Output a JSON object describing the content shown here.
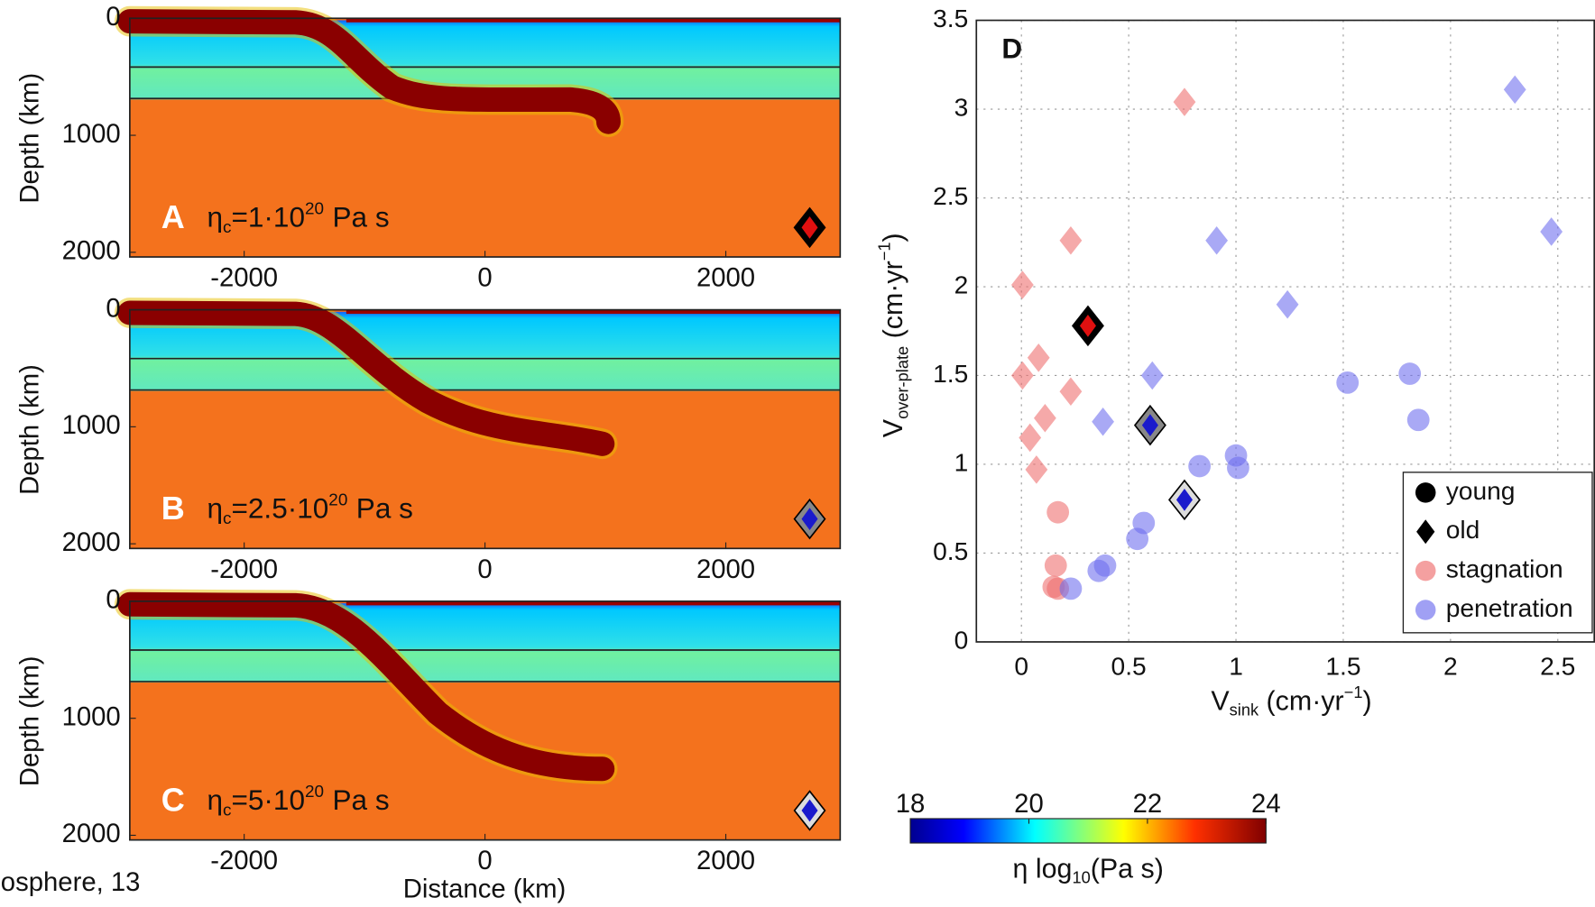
{
  "chart_data": [
    {
      "type": "heatmap",
      "letter": "A",
      "annotation": {
        "symbol": "η",
        "subscript": "c",
        "text": "=1·10",
        "superscript": "20",
        "unit": "Pa s"
      },
      "ylabel": "Depth (km)",
      "xlim": [
        -2950,
        2950
      ],
      "ylim": [
        2040,
        0
      ],
      "xticks": [
        -2000,
        0,
        2000
      ],
      "yticks": [
        0,
        1000,
        2000
      ],
      "marker_color": "#e01010",
      "marker_halo": "#000000"
    },
    {
      "type": "heatmap",
      "letter": "B",
      "annotation": {
        "symbol": "η",
        "subscript": "c",
        "text": "=2.5·10",
        "superscript": "20",
        "unit": "Pa s"
      },
      "ylabel": "Depth (km)",
      "xlim": [
        -2950,
        2950
      ],
      "ylim": [
        2040,
        0
      ],
      "xticks": [
        -2000,
        0,
        2000
      ],
      "yticks": [
        0,
        1000,
        2000
      ],
      "marker_color": "#1a1acc",
      "marker_halo": "#888888"
    },
    {
      "type": "heatmap",
      "letter": "C",
      "annotation": {
        "symbol": "η",
        "subscript": "c",
        "text": "=5·10",
        "superscript": "20",
        "unit": "Pa s"
      },
      "ylabel": "Depth (km)",
      "xlabel": "Distance (km)",
      "xlim": [
        -2950,
        2950
      ],
      "ylim": [
        2040,
        0
      ],
      "xticks": [
        -2000,
        0,
        2000
      ],
      "yticks": [
        0,
        1000,
        2000
      ],
      "marker_color": "#1a1acc",
      "marker_halo": "#dddddd"
    },
    {
      "type": "scatter",
      "letter": "D",
      "xlabel": {
        "symbol": "V",
        "subscript": "sink",
        "text": " (cm·yr",
        "superscript": "−1",
        "end": ")"
      },
      "ylabel": {
        "symbol": "V",
        "subscript": "over-plate",
        "text": " (cm·yr",
        "superscript": "−1",
        "end": ")"
      },
      "xlim": [
        -0.21,
        2.67
      ],
      "ylim": [
        0,
        3.5
      ],
      "xticks": [
        0,
        0.5,
        1,
        1.5,
        2,
        2.5
      ],
      "yticks": [
        0,
        0.5,
        1,
        1.5,
        2,
        2.5,
        3,
        3.5
      ],
      "grid": true,
      "series": [
        {
          "marker": "diamond",
          "color": "#ee6f6f",
          "alpha": 0.6,
          "x": [
            0.005,
            0.23,
            0.76,
            0.08,
            0.005,
            0.23,
            0.11,
            0.04,
            0.07
          ],
          "values": [
            2.01,
            2.26,
            3.04,
            1.6,
            1.5,
            1.41,
            1.26,
            1.15,
            0.97
          ]
        },
        {
          "marker": "diamond",
          "color": "#6f6fee",
          "alpha": 0.6,
          "x": [
            2.3,
            2.47,
            0.91,
            1.24,
            0.61,
            0.38
          ],
          "values": [
            3.11,
            2.31,
            2.26,
            1.9,
            1.5,
            1.24
          ]
        },
        {
          "marker": "circle",
          "color": "#ee6f6f",
          "alpha": 0.6,
          "x": [
            0.17,
            0.16,
            0.15,
            0.17
          ],
          "values": [
            0.73,
            0.43,
            0.31,
            0.3
          ]
        },
        {
          "marker": "circle",
          "color": "#6f6fee",
          "alpha": 0.6,
          "x": [
            0.23,
            0.36,
            0.39,
            0.54,
            0.57,
            0.83,
            1.0,
            1.01,
            1.52,
            1.81,
            1.85
          ],
          "values": [
            0.3,
            0.4,
            0.43,
            0.58,
            0.67,
            0.99,
            1.05,
            0.98,
            1.46,
            1.51,
            1.25
          ]
        },
        {
          "marker": "diamond",
          "color": "#e01010",
          "halo": "#000000",
          "x": [
            0.31
          ],
          "values": [
            1.78
          ]
        },
        {
          "marker": "diamond",
          "color": "#1a1acc",
          "halo": "#888888",
          "x": [
            0.6
          ],
          "values": [
            1.22
          ]
        },
        {
          "marker": "diamond",
          "color": "#1a1acc",
          "halo": "#dddddd",
          "x": [
            0.76
          ],
          "values": [
            0.8
          ]
        }
      ],
      "legend": [
        {
          "label": "young",
          "marker": "circle",
          "color": "#000000"
        },
        {
          "label": "old",
          "marker": "diamond",
          "color": "#000000"
        },
        {
          "label": "stagnation",
          "marker": "circle",
          "color": "#f4a0a0"
        },
        {
          "label": "penetration",
          "marker": "circle",
          "color": "#a0a0f4"
        }
      ]
    },
    {
      "type": "colorbar",
      "lim": [
        18,
        24
      ],
      "ticks": [
        18,
        20,
        22,
        24
      ],
      "label": {
        "symbol": "η",
        "text": " log",
        "subscript": "10",
        "end": "(Pa s)"
      }
    }
  ],
  "footer": "osphere, 13"
}
